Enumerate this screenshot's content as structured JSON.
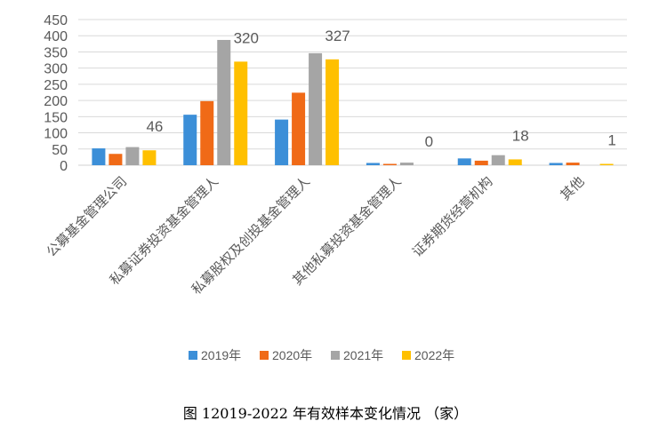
{
  "caption": "图 12019-2022 年有效样本变化情况 （家）",
  "chart_data": {
    "type": "bar",
    "title": "",
    "xlabel": "",
    "ylabel": "",
    "ylim": [
      0,
      450
    ],
    "yticks": [
      0,
      50,
      100,
      150,
      200,
      250,
      300,
      350,
      400,
      450
    ],
    "grid": true,
    "legend": "bottom",
    "categories": [
      "公募基金管理公司",
      "私募证券投资基金管理人",
      "私募股权及创投基金管理人",
      "其他私募投资基金管理人",
      "证券期货经营机构",
      "其他"
    ],
    "series": [
      {
        "name": "2019年",
        "color": "#3C8FD8",
        "values": [
          52,
          156,
          141,
          7,
          21,
          7
        ]
      },
      {
        "name": "2020年",
        "color": "#F06A17",
        "values": [
          35,
          198,
          224,
          4,
          14,
          8
        ]
      },
      {
        "name": "2021年",
        "color": "#A5A5A5",
        "values": [
          56,
          387,
          346,
          8,
          31,
          0
        ]
      },
      {
        "name": "2022年",
        "color": "#FFC000",
        "values": [
          46,
          320,
          327,
          0,
          18,
          1
        ]
      }
    ],
    "data_labels": [
      {
        "category": 0,
        "series": 3,
        "text": "46"
      },
      {
        "category": 1,
        "series": 3,
        "text": "320"
      },
      {
        "category": 2,
        "series": 3,
        "text": "327"
      },
      {
        "category": 3,
        "series": 3,
        "text": "0"
      },
      {
        "category": 4,
        "series": 3,
        "text": "18"
      },
      {
        "category": 5,
        "series": 3,
        "text": "1"
      }
    ]
  }
}
